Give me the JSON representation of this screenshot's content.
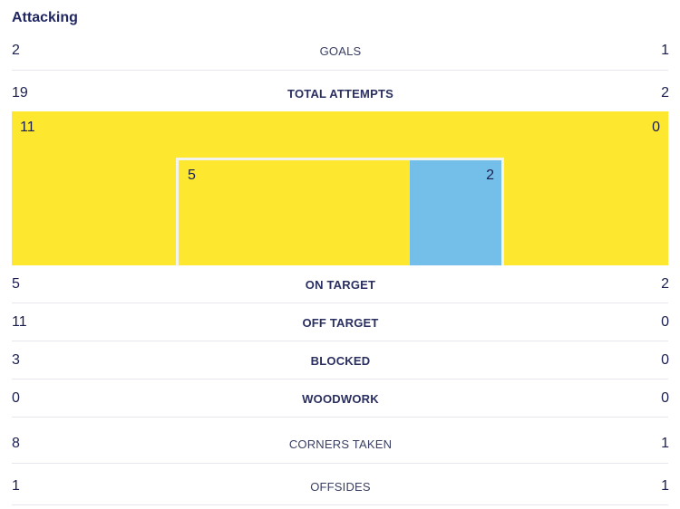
{
  "section": {
    "title": "Attacking"
  },
  "stats": {
    "goals": {
      "home": "2",
      "label": "GOALS",
      "away": "1"
    },
    "total_attempts": {
      "home": "19",
      "label": "TOTAL ATTEMPTS",
      "away": "2"
    },
    "on_target": {
      "home": "5",
      "label": "ON TARGET",
      "away": "2"
    },
    "off_target": {
      "home": "11",
      "label": "OFF TARGET",
      "away": "0"
    },
    "blocked": {
      "home": "3",
      "label": "BLOCKED",
      "away": "0"
    },
    "woodwork": {
      "home": "0",
      "label": "WOODWORK",
      "away": "0"
    },
    "corners": {
      "home": "8",
      "label": "CORNERS TAKEN",
      "away": "1"
    },
    "offsides": {
      "home": "1",
      "label": "OFFSIDES",
      "away": "1"
    }
  },
  "attempts_graphic": {
    "off_target_home": "11",
    "off_target_away": "0",
    "on_target_home": "5",
    "on_target_away": "2",
    "colors": {
      "home": "#fde72f",
      "away": "#74bfe9",
      "goal_frame": "#f4f4ef"
    }
  }
}
